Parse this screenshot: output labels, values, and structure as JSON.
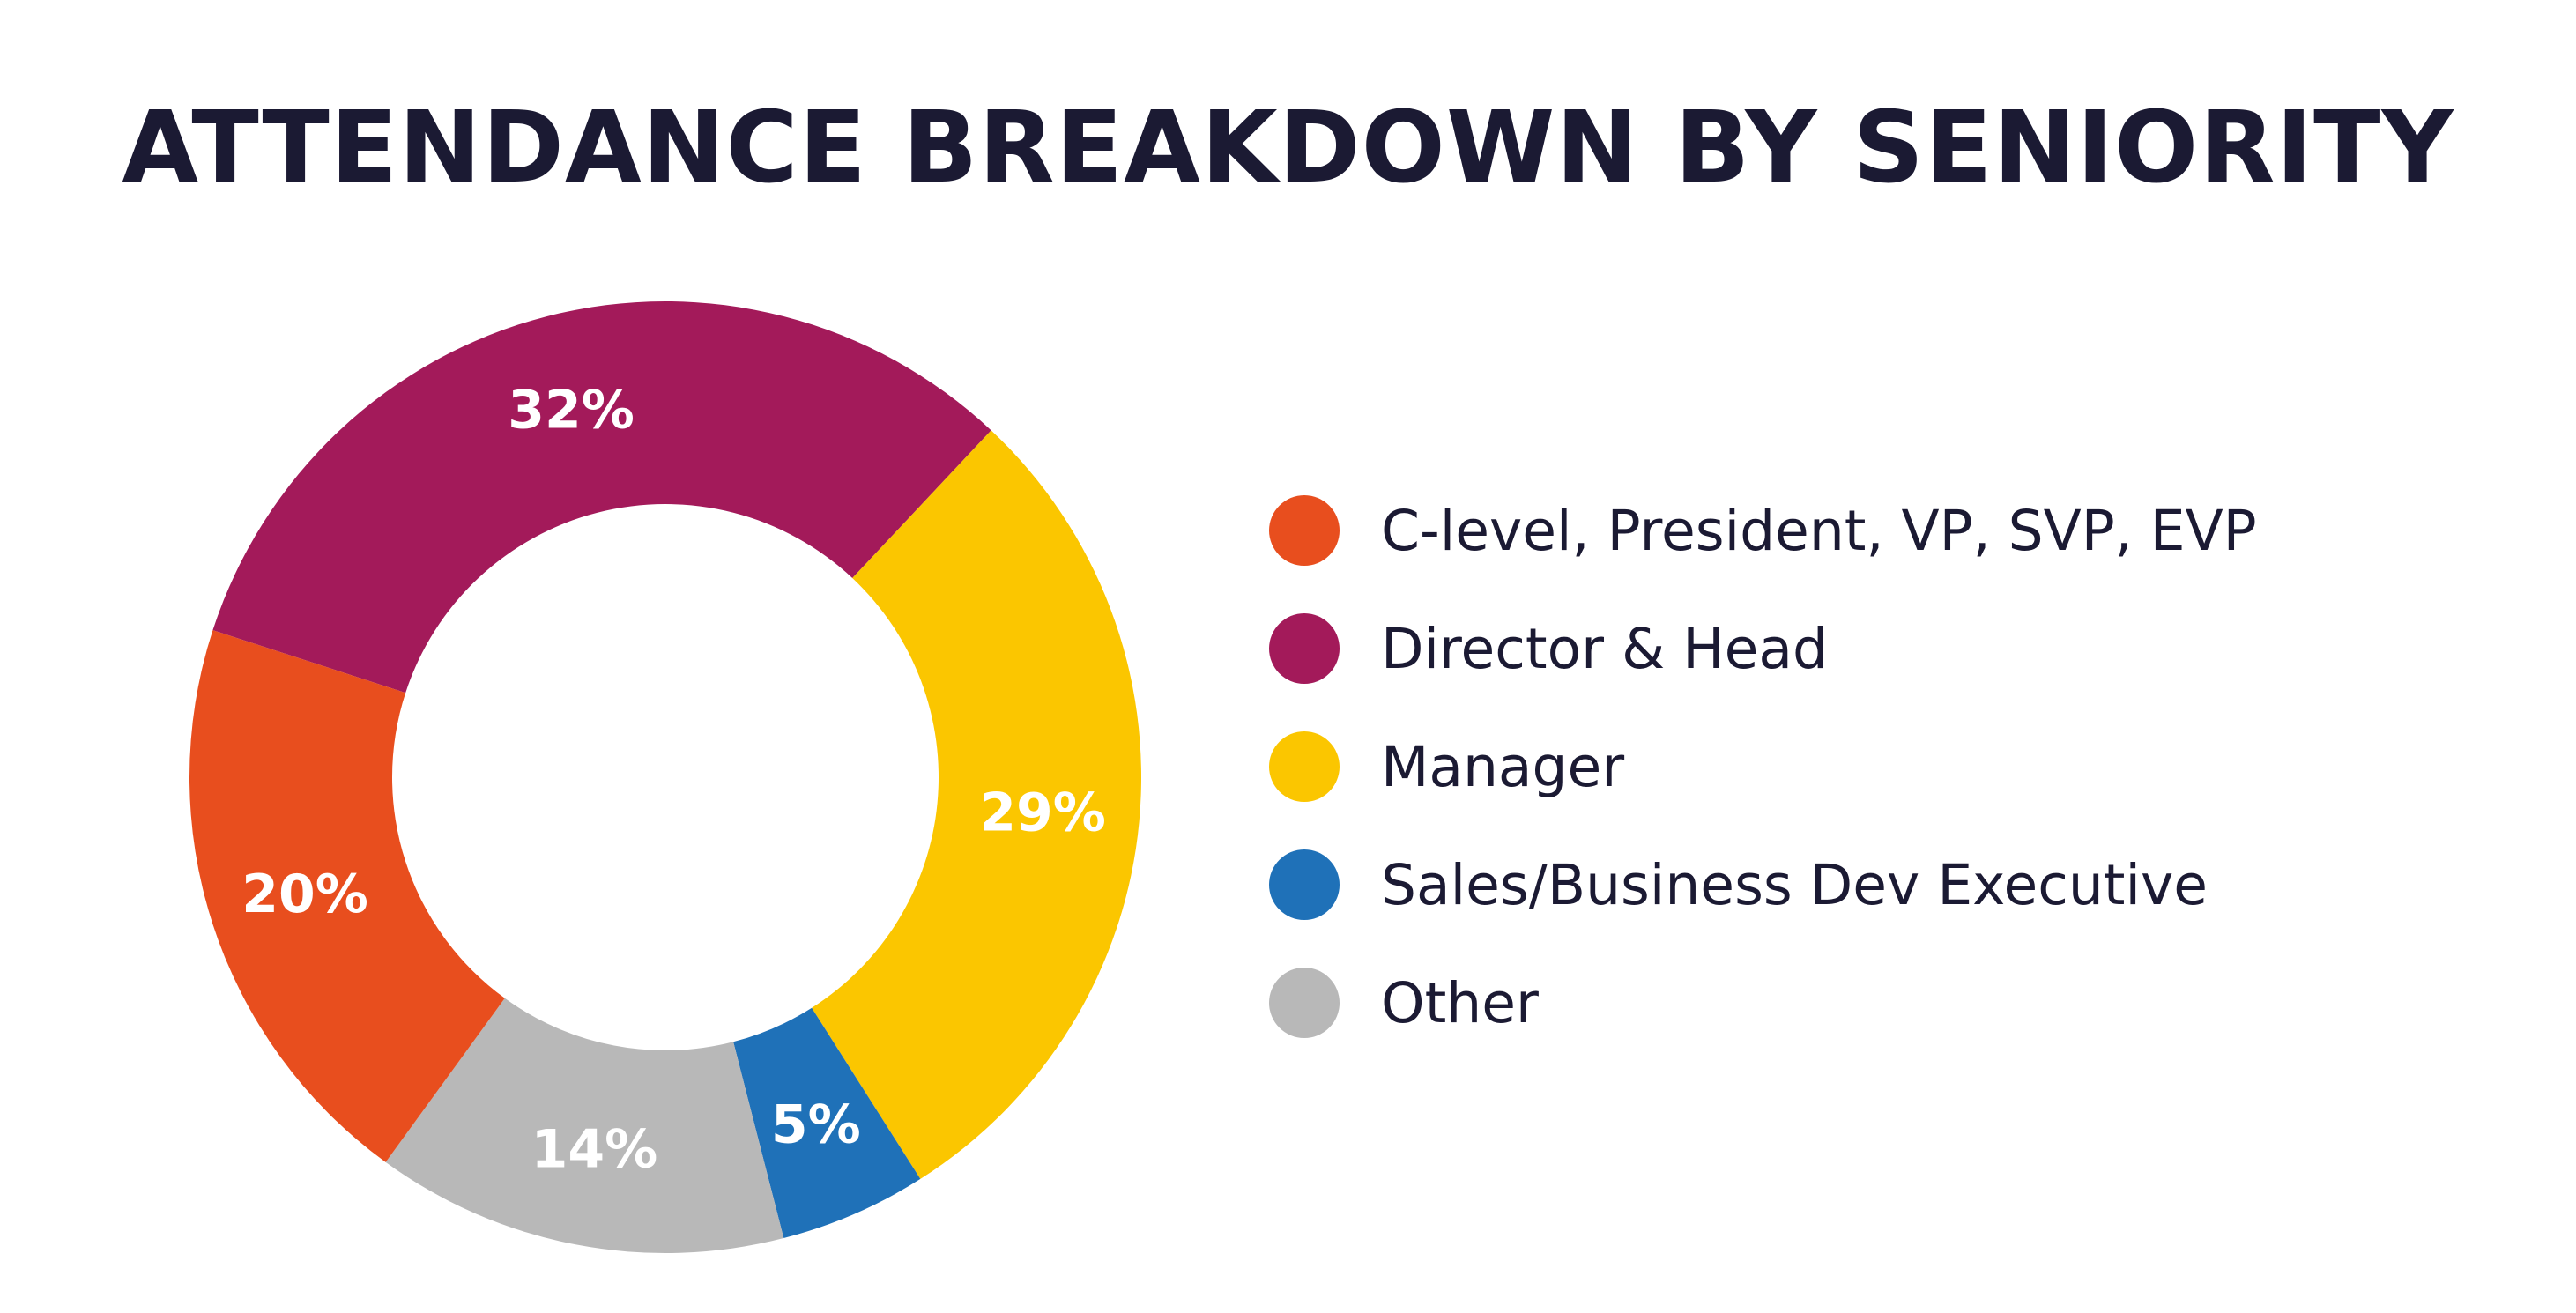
{
  "title": "ATTENDANCE BREAKDOWN BY SENIORITY",
  "chart_data": {
    "type": "pie",
    "title": "ATTENDANCE BREAKDOWN BY SENIORITY",
    "donut": true,
    "legend_position": "right",
    "slices": [
      {
        "name": "Director & Head",
        "value": 32,
        "label": "32%",
        "color": "#a31a5a"
      },
      {
        "name": "Manager",
        "value": 29,
        "label": "29%",
        "color": "#fbc600"
      },
      {
        "name": "Sales/Business Dev Executive",
        "value": 5,
        "label": "5%",
        "color": "#1f71b8"
      },
      {
        "name": "Other",
        "value": 14,
        "label": "14%",
        "color": "#b8b8b8"
      },
      {
        "name": "C-level, President, VP, SVP, EVP",
        "value": 20,
        "label": "20%",
        "color": "#e84e1e"
      }
    ],
    "legend": [
      {
        "name": "C-level, President, VP, SVP, EVP",
        "color": "#e84e1e"
      },
      {
        "name": "Director & Head",
        "color": "#a31a5a"
      },
      {
        "name": "Manager",
        "color": "#fbc600"
      },
      {
        "name": "Sales/Business Dev Executive",
        "color": "#1f71b8"
      },
      {
        "name": "Other",
        "color": "#b8b8b8"
      }
    ]
  }
}
